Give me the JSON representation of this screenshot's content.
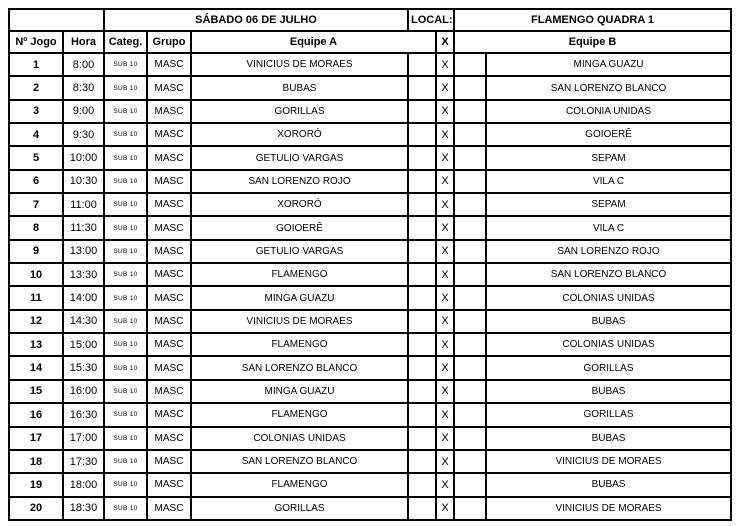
{
  "header": {
    "corner_blank": "",
    "day_title": "SÁBADO 06 DE JULHO",
    "local_label": "LOCAL:",
    "venue": "FLAMENGO QUADRA 1",
    "columns": {
      "game": "Nº Jogo",
      "time": "Hora",
      "category": "Categ.",
      "group": "Grupo",
      "team_a": "Equipe A",
      "versus": "X",
      "team_b": "Equipe B"
    }
  },
  "versus_mark": "X",
  "rows": [
    {
      "num": "1",
      "time": "8:00",
      "cat": "SUB 10",
      "group": "MASC",
      "team_a": "VINICIUS DE MORAES",
      "team_b": "MINGA GUAZU"
    },
    {
      "num": "2",
      "time": "8:30",
      "cat": "SUB 10",
      "group": "MASC",
      "team_a": "BUBAS",
      "team_b": "SAN LORENZO BLANCO"
    },
    {
      "num": "3",
      "time": "9:00",
      "cat": "SUB 10",
      "group": "MASC",
      "team_a": "GORILLAS",
      "team_b": "COLONIA UNIDAS"
    },
    {
      "num": "4",
      "time": "9:30",
      "cat": "SUB 10",
      "group": "MASC",
      "team_a": "XORORÓ",
      "team_b": "GOIOERÊ"
    },
    {
      "num": "5",
      "time": "10:00",
      "cat": "SUB 10",
      "group": "MASC",
      "team_a": "GETULIO VARGAS",
      "team_b": "SEPAM"
    },
    {
      "num": "6",
      "time": "10:30",
      "cat": "SUB 10",
      "group": "MASC",
      "team_a": "SAN LORENZO ROJO",
      "team_b": "VILA C"
    },
    {
      "num": "7",
      "time": "11:00",
      "cat": "SUB 10",
      "group": "MASC",
      "team_a": "XORORÓ",
      "team_b": "SEPAM"
    },
    {
      "num": "8",
      "time": "11:30",
      "cat": "SUB 10",
      "group": "MASC",
      "team_a": "GOIOERÊ",
      "team_b": "VILA C"
    },
    {
      "num": "9",
      "time": "13:00",
      "cat": "SUB 10",
      "group": "MASC",
      "team_a": "GETULIO VARGAS",
      "team_b": "SAN LORENZO ROJO"
    },
    {
      "num": "10",
      "time": "13:30",
      "cat": "SUB 10",
      "group": "MASC",
      "team_a": "FLAMENGO",
      "team_b": "SAN LORENZO BLANCO"
    },
    {
      "num": "11",
      "time": "14:00",
      "cat": "SUB 10",
      "group": "MASC",
      "team_a": "MINGA GUAZU",
      "team_b": "COLONIAS UNIDAS"
    },
    {
      "num": "12",
      "time": "14:30",
      "cat": "SUB 10",
      "group": "MASC",
      "team_a": "VINICIUS DE MORAES",
      "team_b": "BUBAS"
    },
    {
      "num": "13",
      "time": "15:00",
      "cat": "SUB 10",
      "group": "MASC",
      "team_a": "FLAMENGO",
      "team_b": "COLONIAS UNIDAS"
    },
    {
      "num": "14",
      "time": "15:30",
      "cat": "SUB 10",
      "group": "MASC",
      "team_a": "SAN LORENZO BLANCO",
      "team_b": "GORILLAS"
    },
    {
      "num": "15",
      "time": "16:00",
      "cat": "SUB 10",
      "group": "MASC",
      "team_a": "MINGA GUAZU",
      "team_b": "BUBAS"
    },
    {
      "num": "16",
      "time": "16:30",
      "cat": "SUB 10",
      "group": "MASC",
      "team_a": "FLAMENGO",
      "team_b": "GORILLAS"
    },
    {
      "num": "17",
      "time": "17:00",
      "cat": "SUB 10",
      "group": "MASC",
      "team_a": "COLONIAS UNIDAS",
      "team_b": "BUBAS"
    },
    {
      "num": "18",
      "time": "17:30",
      "cat": "SUB 10",
      "group": "MASC",
      "team_a": "SAN LORENZO BLANCO",
      "team_b": "VINICIUS DE MORAES"
    },
    {
      "num": "19",
      "time": "18:00",
      "cat": "SUB 10",
      "group": "MASC",
      "team_a": "FLAMENGO",
      "team_b": "BUBAS"
    },
    {
      "num": "20",
      "time": "18:30",
      "cat": "SUB 10",
      "group": "MASC",
      "team_a": "GORILLAS",
      "team_b": "VINICIUS DE MORAES"
    }
  ]
}
